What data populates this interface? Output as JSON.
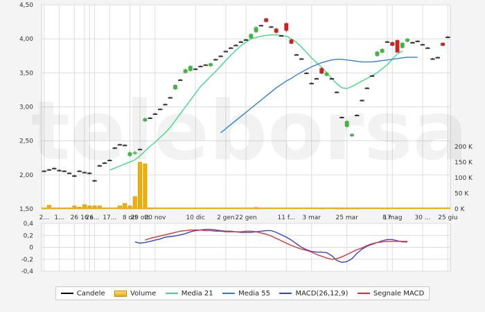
{
  "watermark": "teleborsa",
  "chart_data": [
    {
      "type": "candlestick",
      "y_ticks": [
        "4,50",
        "4,00",
        "3,50",
        "3,00",
        "2,50",
        "2,00",
        "1,50"
      ],
      "y2_ticks": [
        "200 K",
        "150 K",
        "100 K",
        "50 K",
        "0 K"
      ],
      "x_labels": [
        {
          "label": "2...",
          "i": 0
        },
        {
          "label": "1...",
          "i": 3
        },
        {
          "label": "26",
          "i": 6
        },
        {
          "label": "16",
          "i": 8
        },
        {
          "label": "26",
          "i": 9
        },
        {
          "label": "a...",
          "i": 10
        },
        {
          "label": "17...",
          "i": 13
        },
        {
          "label": "8 ott",
          "i": 17
        },
        {
          "label": "29 ott",
          "i": 19
        },
        {
          "label": "20 nov",
          "i": 22
        },
        {
          "label": "10 dic",
          "i": 30
        },
        {
          "label": "2 gen",
          "i": 36
        },
        {
          "label": "22 gen",
          "i": 40
        },
        {
          "label": "11 f...",
          "i": 48
        },
        {
          "label": "3 mar",
          "i": 53
        },
        {
          "label": "25 mar",
          "i": 60
        },
        {
          "label": "17",
          "i": 68
        },
        {
          "label": "8 mag",
          "i": 69
        },
        {
          "label": "30 ...",
          "i": 75
        },
        {
          "label": "25 giu",
          "i": 80
        }
      ],
      "ylim": [
        1.5,
        4.5
      ],
      "volume_ylim": [
        0,
        200
      ],
      "candles": [
        {
          "o": 2.06,
          "h": 2.07,
          "l": 2.05,
          "c": 2.06
        },
        {
          "o": 2.08,
          "h": 2.09,
          "l": 2.07,
          "c": 2.08
        },
        {
          "o": 2.1,
          "h": 2.11,
          "l": 2.09,
          "c": 2.1
        },
        {
          "o": 2.07,
          "h": 2.08,
          "l": 2.06,
          "c": 2.07
        },
        {
          "o": 2.06,
          "h": 2.07,
          "l": 2.05,
          "c": 2.06
        },
        {
          "o": 2.03,
          "h": 2.04,
          "l": 2.02,
          "c": 2.03
        },
        {
          "o": 1.99,
          "h": 2.0,
          "l": 1.97,
          "c": 1.98
        },
        {
          "o": 2.06,
          "h": 2.07,
          "l": 2.05,
          "c": 2.06
        },
        {
          "o": 2.04,
          "h": 2.05,
          "l": 2.03,
          "c": 2.04
        },
        {
          "o": 2.02,
          "h": 2.04,
          "l": 2.01,
          "c": 2.03
        },
        {
          "o": 1.92,
          "h": 1.93,
          "l": 1.9,
          "c": 1.91
        },
        {
          "o": 2.14,
          "h": 2.15,
          "l": 2.13,
          "c": 2.14
        },
        {
          "o": 2.18,
          "h": 2.19,
          "l": 2.17,
          "c": 2.18
        },
        {
          "o": 2.22,
          "h": 2.23,
          "l": 2.21,
          "c": 2.22
        },
        {
          "o": 2.4,
          "h": 2.41,
          "l": 2.39,
          "c": 2.4
        },
        {
          "o": 2.45,
          "h": 2.46,
          "l": 2.44,
          "c": 2.45
        },
        {
          "o": 2.44,
          "h": 2.45,
          "l": 2.43,
          "c": 2.44
        },
        {
          "o": 2.28,
          "h": 2.34,
          "l": 2.27,
          "c": 2.33
        },
        {
          "o": 2.31,
          "h": 2.35,
          "l": 2.3,
          "c": 2.33
        },
        {
          "o": 2.38,
          "h": 2.39,
          "l": 2.37,
          "c": 2.38
        },
        {
          "o": 2.79,
          "h": 2.84,
          "l": 2.78,
          "c": 2.83
        },
        {
          "o": 2.84,
          "h": 2.85,
          "l": 2.83,
          "c": 2.84
        },
        {
          "o": 2.9,
          "h": 2.91,
          "l": 2.89,
          "c": 2.9
        },
        {
          "o": 2.97,
          "h": 2.98,
          "l": 2.96,
          "c": 2.97
        },
        {
          "o": 3.04,
          "h": 3.05,
          "l": 3.03,
          "c": 3.04
        },
        {
          "o": 3.14,
          "h": 3.15,
          "l": 3.13,
          "c": 3.14
        },
        {
          "o": 3.26,
          "h": 3.33,
          "l": 3.25,
          "c": 3.32
        },
        {
          "o": 3.4,
          "h": 3.41,
          "l": 3.39,
          "c": 3.4
        },
        {
          "o": 3.5,
          "h": 3.56,
          "l": 3.49,
          "c": 3.55
        },
        {
          "o": 3.53,
          "h": 3.61,
          "l": 3.52,
          "c": 3.6
        },
        {
          "o": 3.56,
          "h": 3.57,
          "l": 3.55,
          "c": 3.56
        },
        {
          "o": 3.6,
          "h": 3.61,
          "l": 3.59,
          "c": 3.6
        },
        {
          "o": 3.62,
          "h": 3.63,
          "l": 3.61,
          "c": 3.62
        },
        {
          "o": 3.6,
          "h": 3.65,
          "l": 3.59,
          "c": 3.64
        },
        {
          "o": 3.7,
          "h": 3.71,
          "l": 3.69,
          "c": 3.7
        },
        {
          "o": 3.75,
          "h": 3.76,
          "l": 3.74,
          "c": 3.75
        },
        {
          "o": 3.82,
          "h": 3.83,
          "l": 3.81,
          "c": 3.82
        },
        {
          "o": 3.87,
          "h": 3.88,
          "l": 3.86,
          "c": 3.87
        },
        {
          "o": 3.91,
          "h": 3.92,
          "l": 3.9,
          "c": 3.91
        },
        {
          "o": 3.96,
          "h": 3.97,
          "l": 3.95,
          "c": 3.96
        },
        {
          "o": 3.99,
          "h": 4.0,
          "l": 3.98,
          "c": 3.99
        },
        {
          "o": 4.01,
          "h": 4.08,
          "l": 4.0,
          "c": 4.07
        },
        {
          "o": 4.1,
          "h": 4.18,
          "l": 4.09,
          "c": 4.17
        },
        {
          "o": 4.2,
          "h": 4.21,
          "l": 4.19,
          "c": 4.2
        },
        {
          "o": 4.3,
          "h": 4.31,
          "l": 4.24,
          "c": 4.25
        },
        {
          "o": 4.18,
          "h": 4.19,
          "l": 4.17,
          "c": 4.18
        },
        {
          "o": 4.15,
          "h": 4.16,
          "l": 4.08,
          "c": 4.09
        },
        {
          "o": 4.05,
          "h": 4.06,
          "l": 4.04,
          "c": 4.05
        },
        {
          "o": 4.23,
          "h": 4.24,
          "l": 4.1,
          "c": 4.12
        },
        {
          "o": 3.99,
          "h": 4.0,
          "l": 3.92,
          "c": 3.93
        },
        {
          "o": 3.77,
          "h": 3.78,
          "l": 3.76,
          "c": 3.77
        },
        {
          "o": 3.71,
          "h": 3.72,
          "l": 3.7,
          "c": 3.71
        },
        {
          "o": 3.5,
          "h": 3.51,
          "l": 3.49,
          "c": 3.5
        },
        {
          "o": 3.35,
          "h": 3.36,
          "l": 3.34,
          "c": 3.35
        },
        {
          "o": 3.42,
          "h": 3.43,
          "l": 3.41,
          "c": 3.42
        },
        {
          "o": 3.57,
          "h": 3.58,
          "l": 3.48,
          "c": 3.49
        },
        {
          "o": 3.46,
          "h": 3.51,
          "l": 3.45,
          "c": 3.5
        },
        {
          "o": 3.42,
          "h": 3.43,
          "l": 3.41,
          "c": 3.42
        },
        {
          "o": 3.22,
          "h": 3.23,
          "l": 3.21,
          "c": 3.22
        },
        {
          "o": 2.85,
          "h": 2.86,
          "l": 2.84,
          "c": 2.85
        },
        {
          "o": 2.71,
          "h": 2.8,
          "l": 2.7,
          "c": 2.79
        },
        {
          "o": 2.57,
          "h": 2.61,
          "l": 2.56,
          "c": 2.6
        },
        {
          "o": 2.88,
          "h": 2.89,
          "l": 2.87,
          "c": 2.88
        },
        {
          "o": 3.1,
          "h": 3.11,
          "l": 3.09,
          "c": 3.1
        },
        {
          "o": 3.28,
          "h": 3.29,
          "l": 3.27,
          "c": 3.28
        },
        {
          "o": 3.46,
          "h": 3.47,
          "l": 3.45,
          "c": 3.46
        },
        {
          "o": 3.75,
          "h": 3.82,
          "l": 3.74,
          "c": 3.81
        },
        {
          "o": 3.8,
          "h": 3.86,
          "l": 3.79,
          "c": 3.85
        },
        {
          "o": 3.96,
          "h": 3.97,
          "l": 3.95,
          "c": 3.96
        },
        {
          "o": 3.95,
          "h": 3.96,
          "l": 3.89,
          "c": 3.9
        },
        {
          "o": 3.98,
          "h": 3.99,
          "l": 3.8,
          "c": 3.8
        },
        {
          "o": 3.87,
          "h": 3.95,
          "l": 3.86,
          "c": 3.94
        },
        {
          "o": 3.96,
          "h": 4.01,
          "l": 3.95,
          "c": 4.0
        },
        {
          "o": 3.95,
          "h": 3.96,
          "l": 3.94,
          "c": 3.95
        },
        {
          "o": 3.97,
          "h": 3.98,
          "l": 3.96,
          "c": 3.97
        },
        {
          "o": 3.92,
          "h": 3.93,
          "l": 3.91,
          "c": 3.92
        },
        {
          "o": 3.87,
          "h": 3.88,
          "l": 3.86,
          "c": 3.87
        },
        {
          "o": 3.71,
          "h": 3.72,
          "l": 3.7,
          "c": 3.71
        },
        {
          "o": 3.73,
          "h": 3.74,
          "l": 3.72,
          "c": 3.73
        },
        {
          "o": 3.94,
          "h": 3.95,
          "l": 3.89,
          "c": 3.9
        },
        {
          "o": 4.03,
          "h": 4.04,
          "l": 4.02,
          "c": 4.03
        }
      ],
      "volume_k": [
        3,
        12,
        3,
        3,
        2,
        2,
        10,
        6,
        14,
        10,
        10,
        10,
        0,
        0,
        0,
        10,
        18,
        10,
        40,
        150,
        145,
        3,
        0,
        0,
        0,
        0,
        0,
        0,
        0,
        0,
        0,
        0,
        0,
        0,
        0,
        0,
        0,
        0,
        0,
        0,
        0,
        0,
        5,
        0,
        0,
        0,
        0,
        0,
        0,
        0,
        0,
        0,
        0,
        0,
        0,
        2,
        0,
        0,
        4,
        4,
        3,
        3,
        4,
        0,
        0,
        0,
        0,
        2,
        3,
        0,
        0,
        0,
        0,
        0,
        0,
        0,
        0,
        0,
        0,
        0,
        0,
        0
      ],
      "media21": {
        "start": 13,
        "values": [
          2.07,
          2.1,
          2.13,
          2.16,
          2.19,
          2.22,
          2.28,
          2.35,
          2.42,
          2.48,
          2.55,
          2.62,
          2.7,
          2.8,
          2.9,
          3.0,
          3.1,
          3.2,
          3.3,
          3.37,
          3.45,
          3.52,
          3.6,
          3.68,
          3.76,
          3.83,
          3.9,
          3.95,
          4.0,
          4.02,
          4.04,
          4.05,
          4.06,
          4.06,
          4.05,
          4.04,
          4.0,
          3.95,
          3.88,
          3.8,
          3.72,
          3.65,
          3.58,
          3.5,
          3.42,
          3.34,
          3.28,
          3.27,
          3.3,
          3.34,
          3.38,
          3.42,
          3.46,
          3.5,
          3.56,
          3.62,
          3.7,
          3.78,
          3.82
        ]
      },
      "media55": {
        "start": 35,
        "values": [
          2.62,
          2.68,
          2.74,
          2.8,
          2.86,
          2.92,
          2.98,
          3.04,
          3.1,
          3.16,
          3.22,
          3.28,
          3.33,
          3.38,
          3.42,
          3.47,
          3.51,
          3.55,
          3.59,
          3.62,
          3.65,
          3.67,
          3.69,
          3.7,
          3.7,
          3.69,
          3.68,
          3.67,
          3.66,
          3.66,
          3.66,
          3.67,
          3.68,
          3.69,
          3.7,
          3.71,
          3.72,
          3.73,
          3.73,
          3.73
        ]
      },
      "macd_ylim": [
        -0.4,
        0.4
      ],
      "macd_ticks": [
        "0,4",
        "0,2",
        "0",
        "-0,2",
        "-0,4"
      ],
      "macd": {
        "start": 18,
        "values": [
          0.09,
          0.07,
          0.08,
          0.1,
          0.12,
          0.14,
          0.17,
          0.18,
          0.19,
          0.21,
          0.23,
          0.26,
          0.28,
          0.29,
          0.3,
          0.3,
          0.29,
          0.28,
          0.27,
          0.27,
          0.26,
          0.25,
          0.25,
          0.25,
          0.26,
          0.27,
          0.28,
          0.28,
          0.25,
          0.21,
          0.17,
          0.12,
          0.06,
          0.0,
          -0.04,
          -0.07,
          -0.08,
          -0.08,
          -0.09,
          -0.14,
          -0.22,
          -0.25,
          -0.24,
          -0.19,
          -0.1,
          -0.03,
          0.02,
          0.05,
          0.08,
          0.11,
          0.13,
          0.13,
          0.11,
          0.09,
          0.09
        ]
      },
      "signal": {
        "start": 20,
        "values": [
          0.12,
          0.15,
          0.17,
          0.19,
          0.21,
          0.23,
          0.25,
          0.27,
          0.28,
          0.29,
          0.29,
          0.29,
          0.28,
          0.28,
          0.27,
          0.27,
          0.26,
          0.26,
          0.26,
          0.26,
          0.27,
          0.27,
          0.26,
          0.24,
          0.22,
          0.19,
          0.15,
          0.11,
          0.07,
          0.03,
          0.0,
          -0.03,
          -0.05,
          -0.08,
          -0.12,
          -0.15,
          -0.18,
          -0.2,
          -0.19,
          -0.16,
          -0.12,
          -0.08,
          -0.04,
          -0.01,
          0.03,
          0.06,
          0.08,
          0.09,
          0.1,
          0.1,
          0.1,
          0.1,
          0.1
        ]
      }
    }
  ],
  "legend": {
    "candles": "Candele",
    "volume": "Volume",
    "media21": "Media 21",
    "media55": "Media 55",
    "macd": "MACD(26,12,9)",
    "signal": "Segnale MACD"
  },
  "colors": {
    "up": "#3cb83c",
    "down": "#cc2222",
    "doji": "#333333",
    "volume": "#f0b000",
    "media21": "#3ddc84",
    "media55": "#2f7fd6",
    "macd": "#3344cc",
    "signal": "#e03030",
    "grid": "#dcdcdc"
  }
}
